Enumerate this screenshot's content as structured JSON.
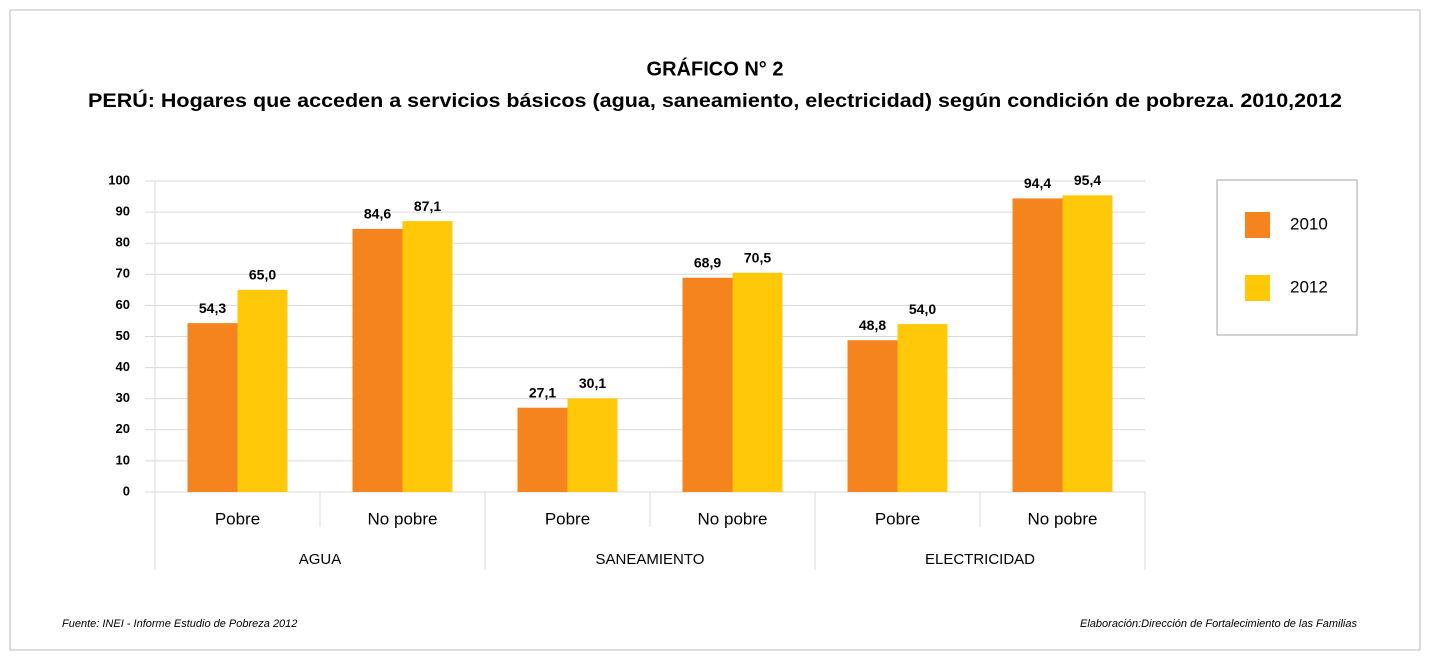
{
  "chart_data": {
    "type": "bar",
    "title": "GRÁFICO N° 2",
    "subtitle": "PERÚ: Hogares que acceden a servicios básicos (agua, saneamiento, electricidad) según condición de pobreza. 2010,2012",
    "categories": [
      "Pobre",
      "No pobre",
      "Pobre",
      "No pobre",
      "Pobre",
      "No pobre"
    ],
    "groups": [
      "AGUA",
      "SANEAMIENTO",
      "ELECTRICIDAD"
    ],
    "series": [
      {
        "name": "2010",
        "color": "#f5841f",
        "values": [
          54.3,
          84.6,
          27.1,
          68.9,
          48.8,
          94.4
        ],
        "value_labels": [
          "54,3",
          "84,6",
          "27,1",
          "68,9",
          "48,8",
          "94,4"
        ]
      },
      {
        "name": "2012",
        "color": "#ffc90a",
        "values": [
          65.0,
          87.1,
          30.1,
          70.5,
          54.0,
          95.4
        ],
        "value_labels": [
          "65,0",
          "87,1",
          "30,1",
          "70,5",
          "54,0",
          "95,4"
        ]
      }
    ],
    "ylim": [
      0,
      100
    ],
    "yticks": [
      0,
      10,
      20,
      30,
      40,
      50,
      60,
      70,
      80,
      90,
      100
    ],
    "grid": true,
    "legend": "right",
    "source": "Fuente: INEI - Informe Estudio de Pobreza 2012",
    "credit": "Elaboración:Dirección de Fortalecimiento de las Familias"
  }
}
